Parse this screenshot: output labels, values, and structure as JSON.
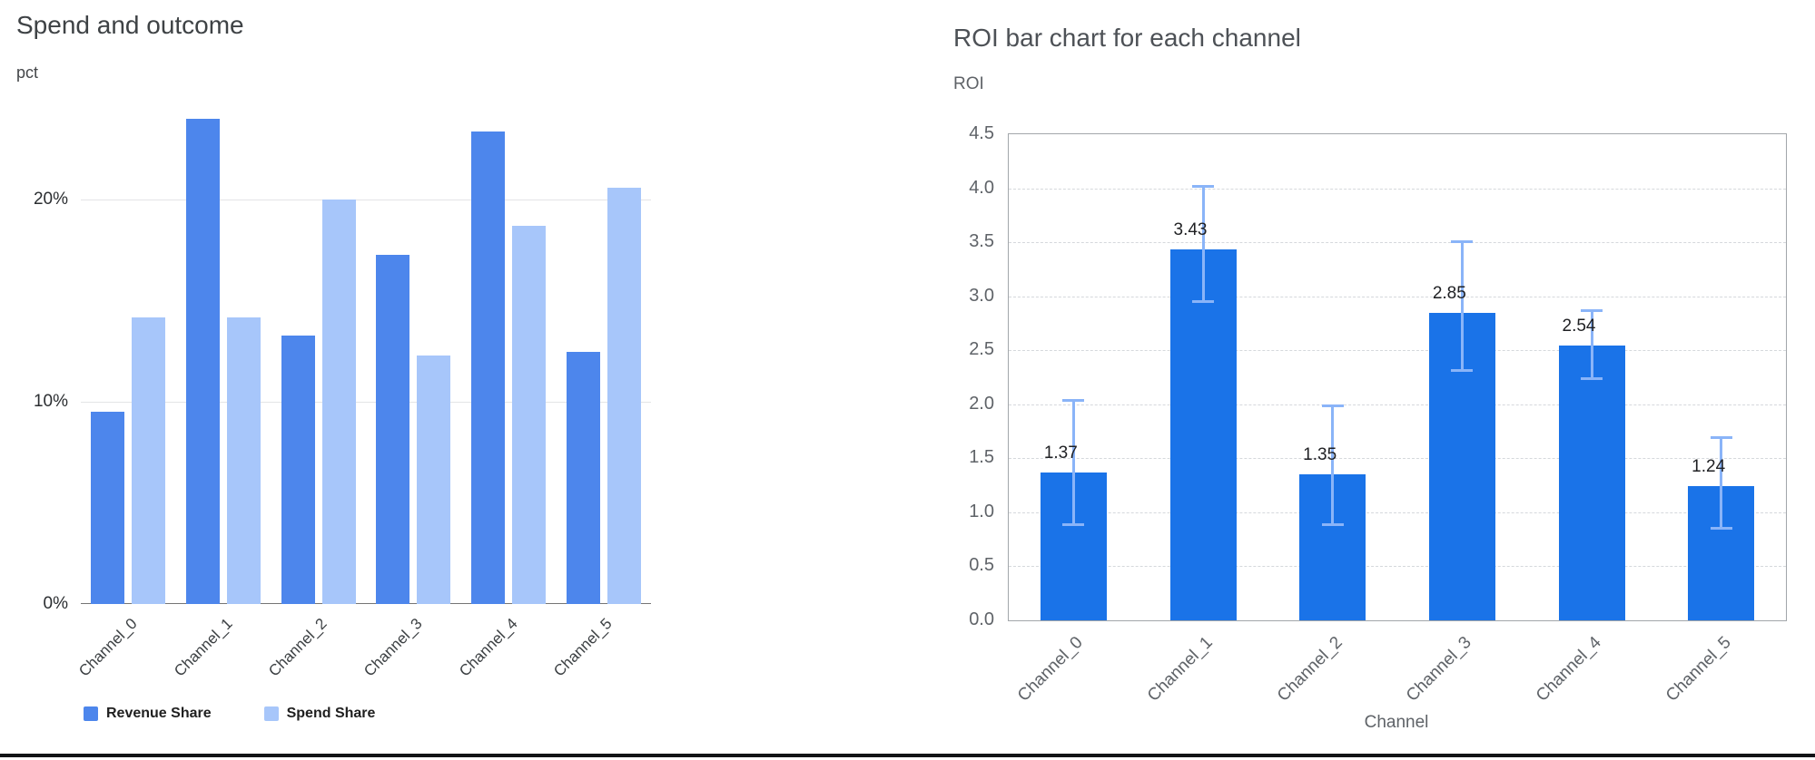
{
  "page": {
    "background": "#ffffff",
    "bottom_rule_color": "#121316"
  },
  "chart_data": [
    {
      "type": "bar",
      "variant": "grouped-vertical",
      "title": "Spend and outcome",
      "ylabel": "pct",
      "xlabel": "",
      "categories": [
        "Channel_0",
        "Channel_1",
        "Channel_2",
        "Channel_3",
        "Channel_4",
        "Channel_5"
      ],
      "series": [
        {
          "name": "Revenue Share",
          "color": "#4d86ec",
          "values": [
            9.5,
            24.0,
            13.3,
            17.3,
            23.4,
            12.5
          ]
        },
        {
          "name": "Spend Share",
          "color": "#a7c6fa",
          "values": [
            14.2,
            14.2,
            20.0,
            12.3,
            18.7,
            20.6
          ]
        }
      ],
      "y_ticks": [
        {
          "value": 0,
          "label": "0%"
        },
        {
          "value": 10,
          "label": "10%"
        },
        {
          "value": 20,
          "label": "20%"
        }
      ],
      "ylim": [
        0,
        25
      ],
      "grid": "solid-horizontal",
      "legend_position": "bottom-left"
    },
    {
      "type": "bar",
      "variant": "single-series-with-error-bars",
      "title": "ROI bar chart for each channel",
      "ylabel": "ROI",
      "xlabel": "Channel",
      "categories": [
        "Channel_0",
        "Channel_1",
        "Channel_2",
        "Channel_3",
        "Channel_4",
        "Channel_5"
      ],
      "bar_color": "#1a73e8",
      "error_bar_color": "#8ab4f8",
      "values": [
        1.37,
        3.43,
        1.35,
        2.85,
        2.54,
        1.24
      ],
      "bar_labels": [
        "1.37",
        "3.43",
        "1.35",
        "2.85",
        "2.54",
        "1.24"
      ],
      "error_low": [
        0.88,
        2.95,
        0.88,
        2.31,
        2.23,
        0.85
      ],
      "error_high": [
        2.04,
        4.02,
        1.99,
        3.51,
        2.87,
        1.7
      ],
      "y_ticks": [
        0,
        0.5,
        1,
        1.5,
        2,
        2.5,
        3,
        3.5,
        4,
        4.5
      ],
      "y_tick_labels": [
        "0.0",
        "0.5",
        "1.0",
        "1.5",
        "2.0",
        "2.5",
        "3.0",
        "3.5",
        "4.0",
        "4.5"
      ],
      "ylim": [
        0,
        4.5
      ],
      "grid": "dashed-horizontal",
      "frame": true,
      "legend_position": "none"
    }
  ]
}
